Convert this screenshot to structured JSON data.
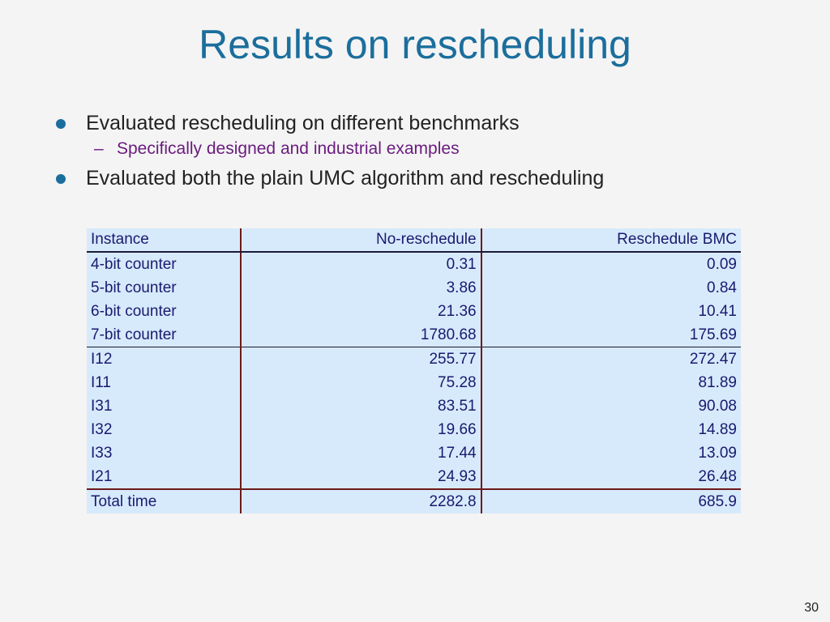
{
  "title": "Results on rescheduling",
  "bullets": [
    {
      "text": "Evaluated rescheduling on different benchmarks"
    },
    {
      "text": "Evaluated both the plain UMC algorithm and rescheduling"
    }
  ],
  "sub_bullets": [
    {
      "dash": "–",
      "text": "Specifically designed and industrial examples"
    }
  ],
  "table": {
    "headers": [
      "Instance",
      "No-reschedule",
      "Reschedule BMC"
    ],
    "rows": [
      [
        "4-bit counter",
        "0.31",
        "0.09"
      ],
      [
        "5-bit counter",
        "3.86",
        "0.84"
      ],
      [
        "6-bit counter",
        "21.36",
        "10.41"
      ],
      [
        "7-bit counter",
        "1780.68",
        "175.69"
      ],
      [
        "I12",
        "255.77",
        "272.47"
      ],
      [
        "I11",
        "75.28",
        "81.89"
      ],
      [
        "I31",
        "83.51",
        "90.08"
      ],
      [
        "I32",
        "19.66",
        "14.89"
      ],
      [
        "I33",
        "17.44",
        "13.09"
      ],
      [
        "I21",
        "24.93",
        "26.48"
      ]
    ],
    "total": [
      "Total time",
      "2282.8",
      "685.9"
    ]
  },
  "colors": {
    "title": "#1b6e9c",
    "bullet_dot": "#1b6e9c",
    "sub_text": "#6a1b7e",
    "table_bg": "#d7eafc",
    "table_text": "#1a1a6e",
    "table_rule": "#6e1a1a"
  },
  "slide_number": "30"
}
